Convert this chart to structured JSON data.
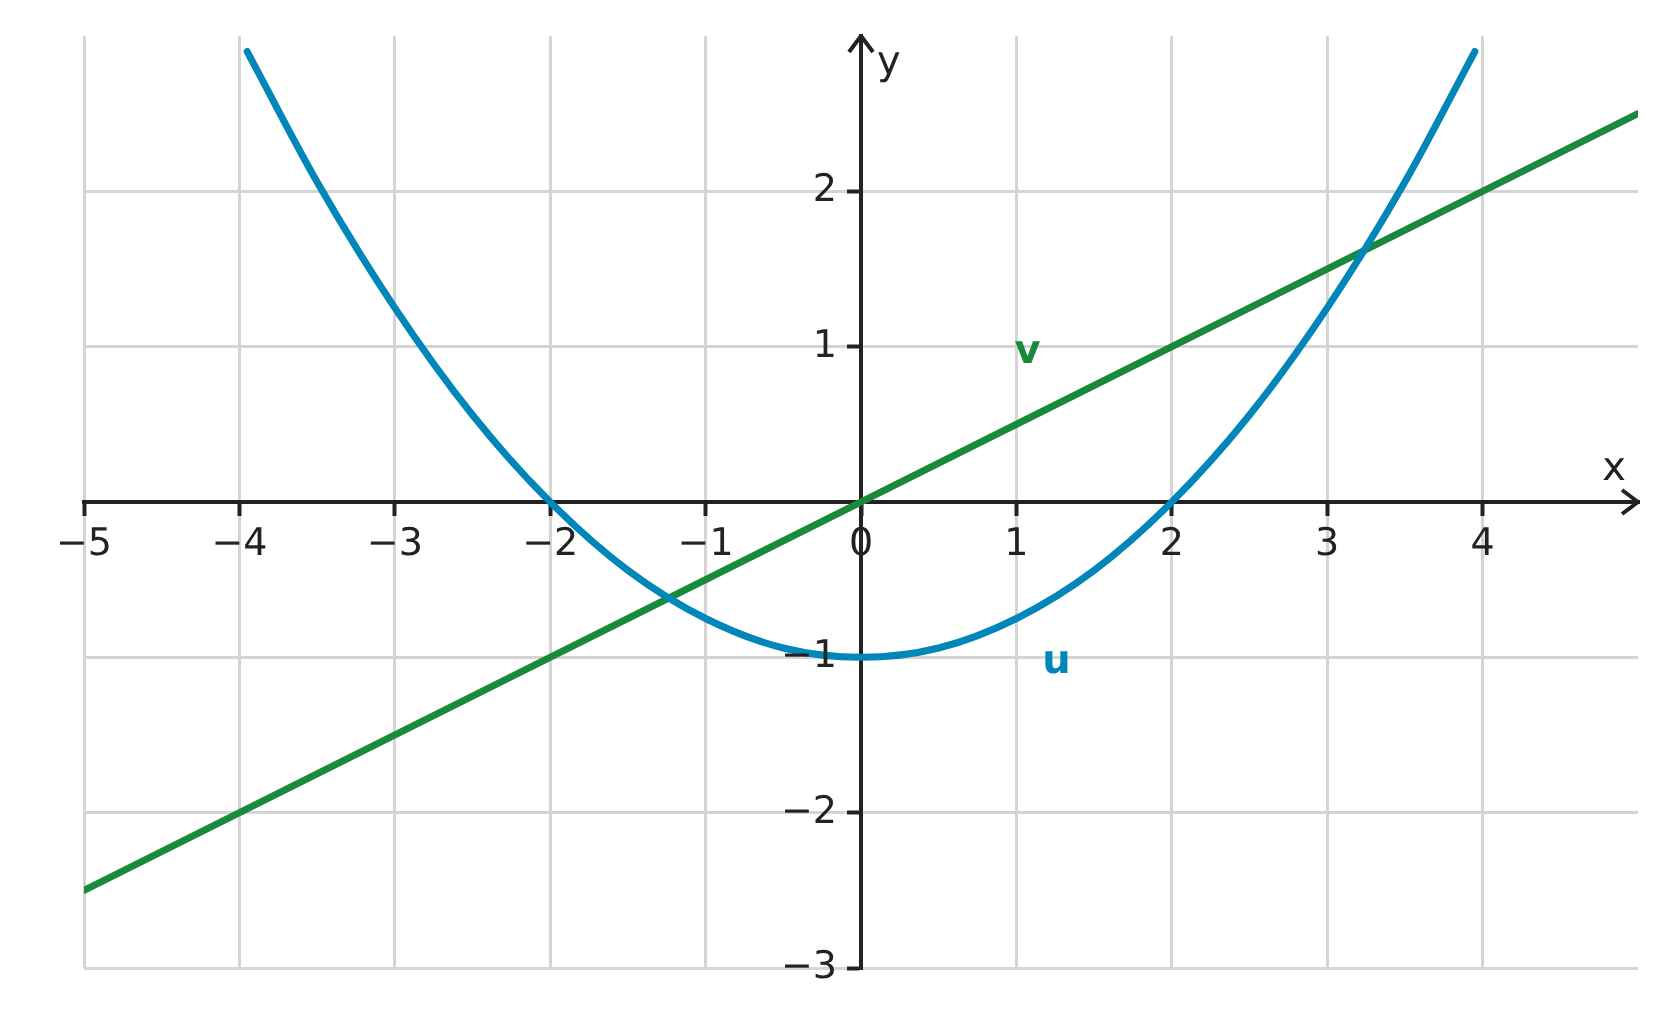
{
  "chart_data": {
    "type": "line",
    "xlabel": "x",
    "ylabel": "y",
    "xlim": [
      -5,
      5
    ],
    "ylim": [
      -3,
      3
    ],
    "xticks": [
      {
        "value": -5,
        "label": "−5"
      },
      {
        "value": -4,
        "label": "−4"
      },
      {
        "value": -3,
        "label": "−3"
      },
      {
        "value": -2,
        "label": "−2"
      },
      {
        "value": -1,
        "label": "−1"
      },
      0,
      1,
      2,
      3,
      4
    ],
    "yticks": [
      {
        "value": -3,
        "label": "−3"
      },
      {
        "value": -2,
        "label": "−2"
      },
      {
        "value": -1,
        "label": "−1"
      },
      1,
      2
    ],
    "grid": true,
    "legend": false,
    "marker": "none",
    "line_style": "solid",
    "series": [
      {
        "name": "u",
        "color": "#0086b8",
        "x": [
          -3.95,
          -3.5,
          -3,
          -2.5,
          -2,
          -1.5,
          -1,
          -0.5,
          0,
          0.5,
          1,
          1.5,
          2,
          2.5,
          3,
          3.5,
          3.95
        ],
        "values": [
          2.9,
          2.06,
          1.25,
          0.56,
          0,
          -0.44,
          -0.75,
          -0.94,
          -1,
          -0.94,
          -0.75,
          -0.44,
          0,
          0.56,
          1.25,
          2.06,
          2.9
        ]
      },
      {
        "name": "v",
        "color": "#188a3e",
        "x": [
          -5,
          5
        ],
        "values": [
          -2.5,
          2.5
        ]
      }
    ]
  }
}
